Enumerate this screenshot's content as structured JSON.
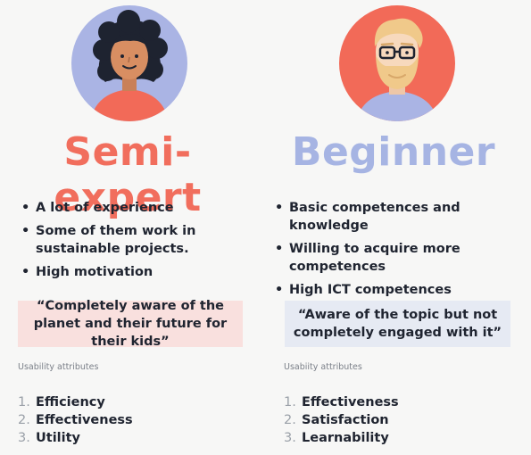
{
  "colors": {
    "coral": "#f16e5d",
    "periwinkle": "#a6b4e3"
  },
  "personas": [
    {
      "title": "Semi-expert",
      "avatar_icon": "woman-curly-hair-avatar-icon",
      "bullets": [
        "A lot of experience",
        "Some of them work in sustainable projects.",
        "High motivation"
      ],
      "quote": "“Completely aware of the planet and their future for their kids”",
      "attributes_label": "Usability attributes",
      "attributes": [
        {
          "num": "1.",
          "label": "Efficiency"
        },
        {
          "num": "2.",
          "label": "Effectiveness"
        },
        {
          "num": "3.",
          "label": "Utility"
        }
      ]
    },
    {
      "title": "Beginner",
      "avatar_icon": "bearded-man-glasses-avatar-icon",
      "bullets": [
        "Basic competences and knowledge",
        "Willing to acquire more competences",
        "High ICT competences"
      ],
      "quote": "“Aware of the topic but not completely engaged with it”",
      "attributes_label": "Usabiity attributes",
      "attributes": [
        {
          "num": "1.",
          "label": "Effectiveness"
        },
        {
          "num": "2.",
          "label": "Satisfaction"
        },
        {
          "num": "3.",
          "label": "Learnability"
        }
      ]
    }
  ]
}
